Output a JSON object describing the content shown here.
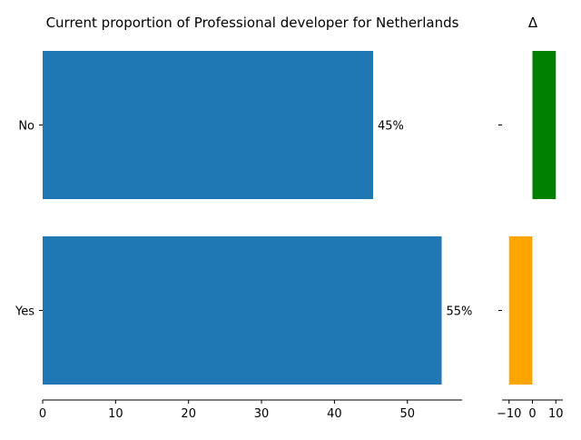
{
  "chart_data": [
    {
      "type": "bar",
      "orientation": "horizontal",
      "title": "Current proportion of Professional developer for Netherlands",
      "xlabel": "",
      "ylabel": "",
      "categories": [
        "No",
        "Yes"
      ],
      "values": [
        45.3,
        54.7
      ],
      "value_labels": [
        "45%",
        "55%"
      ],
      "xlim": [
        0,
        57.5
      ],
      "xticks": [
        0,
        10,
        20,
        30,
        40,
        50
      ],
      "xtick_labels": [
        "0",
        "10",
        "20",
        "30",
        "40",
        "50"
      ],
      "grid": false,
      "bar_color": "#1f77b4"
    },
    {
      "type": "bar",
      "orientation": "horizontal",
      "title": "Δ",
      "xlabel": "",
      "ylabel": "",
      "categories": [
        "No",
        "Yes"
      ],
      "values": [
        10,
        -10
      ],
      "xlim": [
        -13,
        13
      ],
      "xticks": [
        -10,
        0,
        10
      ],
      "xtick_labels": [
        "−10",
        "0",
        "10"
      ],
      "grid": false,
      "bar_colors": [
        "#008000",
        "#ffa500"
      ]
    }
  ]
}
